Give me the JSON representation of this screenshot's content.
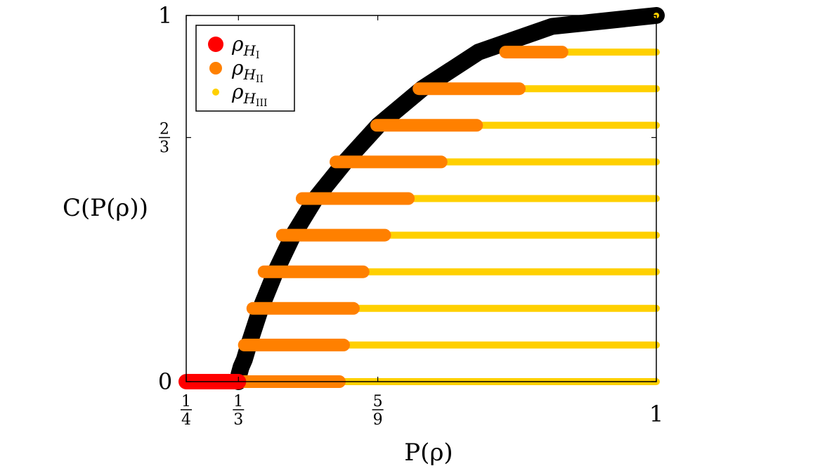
{
  "chart_data": {
    "type": "line",
    "title": "",
    "xlabel": "P(ρ)",
    "ylabel": "C(P(ρ))",
    "xlim": [
      0.25,
      1.0
    ],
    "ylim": [
      0.0,
      1.0
    ],
    "grid": false,
    "legend_position": "top-left",
    "x_ticks": [
      {
        "value": 0.25,
        "label": "1/4",
        "num": "1",
        "den": "4"
      },
      {
        "value": 0.3333,
        "label": "1/3",
        "num": "1",
        "den": "3"
      },
      {
        "value": 0.5556,
        "label": "5/9",
        "num": "5",
        "den": "9"
      },
      {
        "value": 1.0,
        "label": "1"
      }
    ],
    "y_ticks": [
      {
        "value": 0,
        "label": "0"
      },
      {
        "value": 0.6667,
        "label": "2/3",
        "num": "2",
        "den": "3"
      },
      {
        "value": 1,
        "label": "1"
      }
    ],
    "legend": [
      {
        "name": "ρ_{H_I}",
        "base": "ρ",
        "sub": "H",
        "subsub": "I",
        "color": "#ff0000"
      },
      {
        "name": "ρ_{H_II}",
        "base": "ρ",
        "sub": "H",
        "subsub": "II",
        "color": "#ff8000"
      },
      {
        "name": "ρ_{H_III}",
        "base": "ρ",
        "sub": "H",
        "subsub": "III",
        "color": "#ffd000"
      }
    ],
    "series": [
      {
        "name": "boundary",
        "color": "#000000",
        "points": [
          [
            0.3333,
            0.0
          ],
          [
            0.3343,
            0.02
          ],
          [
            0.3375,
            0.04
          ],
          [
            0.3427,
            0.06
          ],
          [
            0.3497,
            0.1
          ],
          [
            0.3687,
            0.2
          ],
          [
            0.3925,
            0.3
          ],
          [
            0.4205,
            0.4
          ],
          [
            0.4563,
            0.5
          ],
          [
            0.5035,
            0.6
          ],
          [
            0.5566,
            0.7
          ],
          [
            0.6266,
            0.8
          ],
          [
            0.7164,
            0.9
          ],
          [
            0.8337,
            0.97
          ],
          [
            1.0,
            1.0
          ]
        ]
      },
      {
        "name": "ρ_{H_I}",
        "color": "#ff0000",
        "segments": [
          {
            "y": 0.0,
            "x0": 0.25,
            "x1": 0.3333
          }
        ]
      },
      {
        "name": "ρ_{H_II}",
        "color": "#ff8000",
        "segments": [
          {
            "y": 0.0,
            "x0": 0.3333,
            "x1": 0.4944
          },
          {
            "y": 0.1,
            "x0": 0.3427,
            "x1": 0.5011
          },
          {
            "y": 0.2,
            "x0": 0.3562,
            "x1": 0.5167
          },
          {
            "y": 0.3,
            "x0": 0.3742,
            "x1": 0.5322
          },
          {
            "y": 0.4,
            "x0": 0.4034,
            "x1": 0.5667
          },
          {
            "y": 0.5,
            "x0": 0.4349,
            "x1": 0.6044
          },
          {
            "y": 0.6,
            "x0": 0.4888,
            "x1": 0.6567
          },
          {
            "y": 0.7,
            "x0": 0.5539,
            "x1": 0.7133
          },
          {
            "y": 0.8,
            "x0": 0.6213,
            "x1": 0.7814
          },
          {
            "y": 0.9,
            "x0": 0.7596,
            "x1": 0.8495
          }
        ]
      },
      {
        "name": "ρ_{H_III}",
        "color": "#ffd000",
        "segments": [
          {
            "y": 0.0,
            "x0": 0.4944,
            "x1": 1.0
          },
          {
            "y": 0.1,
            "x0": 0.5011,
            "x1": 1.0
          },
          {
            "y": 0.2,
            "x0": 0.5167,
            "x1": 1.0
          },
          {
            "y": 0.3,
            "x0": 0.5322,
            "x1": 1.0
          },
          {
            "y": 0.4,
            "x0": 0.5667,
            "x1": 1.0
          },
          {
            "y": 0.5,
            "x0": 0.6044,
            "x1": 1.0
          },
          {
            "y": 0.6,
            "x0": 0.6567,
            "x1": 1.0
          },
          {
            "y": 0.7,
            "x0": 0.7133,
            "x1": 1.0
          },
          {
            "y": 0.8,
            "x0": 0.7814,
            "x1": 1.0
          },
          {
            "y": 0.9,
            "x0": 0.8495,
            "x1": 1.0
          }
        ],
        "points": [
          [
            1.0,
            1.0
          ]
        ]
      }
    ]
  }
}
